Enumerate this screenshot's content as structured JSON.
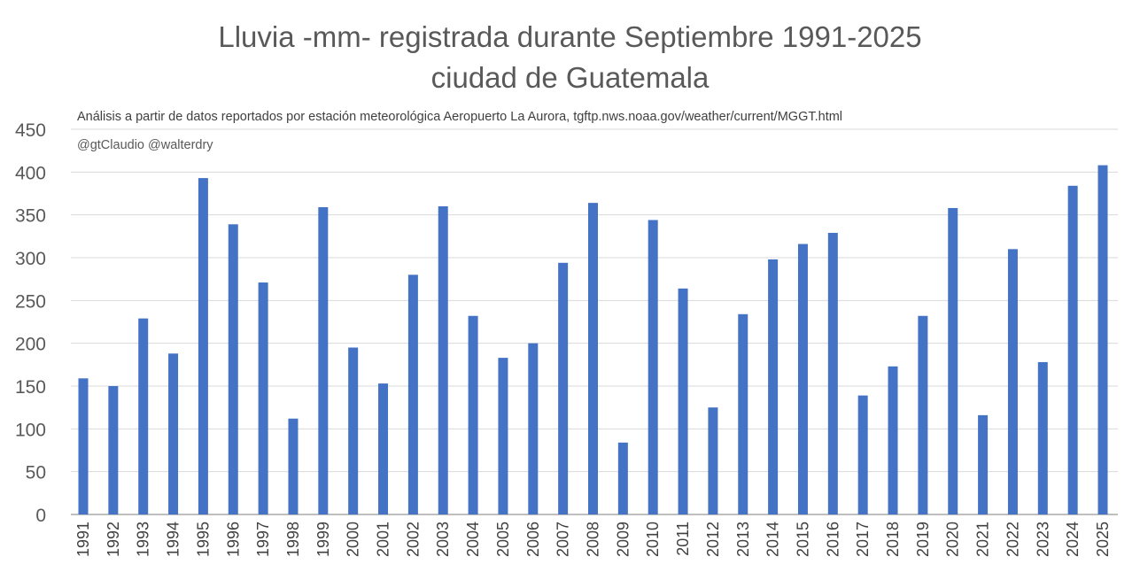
{
  "chart_data": {
    "type": "bar",
    "title": "Lluvia -mm- registrada durante Septiembre 1991-2025",
    "subtitle": "ciudad de Guatemala",
    "annotation": "Análisis a partir de datos reportados por estación meteorológica Aeropuerto La Aurora, tgftp.nws.noaa.gov/weather/current/MGGT.html",
    "credits": "@gtClaudio @walterdry",
    "xlabel": "",
    "ylabel": "",
    "ylim": [
      0,
      450
    ],
    "yticks": [
      0,
      50,
      100,
      150,
      200,
      250,
      300,
      350,
      400,
      450
    ],
    "grid": true,
    "bar_color": "#4472C4",
    "categories": [
      "1991",
      "1992",
      "1993",
      "1994",
      "1995",
      "1996",
      "1997",
      "1998",
      "1999",
      "2000",
      "2001",
      "2002",
      "2003",
      "2004",
      "2005",
      "2006",
      "2007",
      "2008",
      "2009",
      "2010",
      "2011",
      "2012",
      "2013",
      "2014",
      "2015",
      "2016",
      "2017",
      "2018",
      "2019",
      "2020",
      "2021",
      "2022",
      "2023",
      "2024",
      "2025"
    ],
    "values": [
      159,
      150,
      229,
      188,
      393,
      339,
      271,
      112,
      359,
      195,
      153,
      280,
      360,
      232,
      183,
      200,
      294,
      364,
      84,
      344,
      264,
      125,
      234,
      298,
      316,
      329,
      139,
      173,
      232,
      358,
      116,
      310,
      178,
      384,
      408
    ]
  }
}
